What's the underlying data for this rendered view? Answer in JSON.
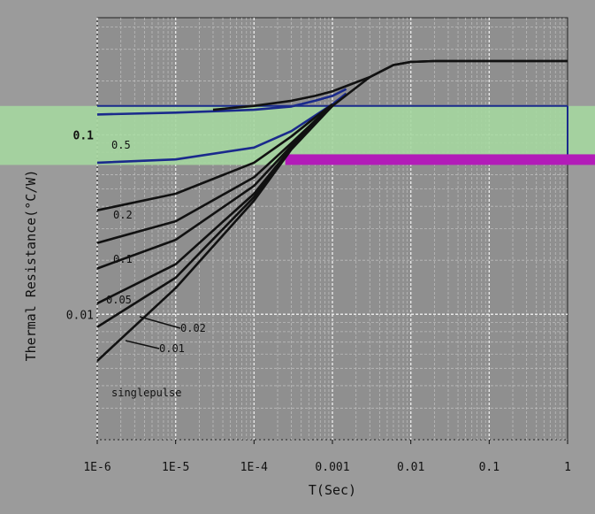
{
  "chart_data": {
    "type": "line",
    "title": "",
    "xlabel": "T(Sec)",
    "ylabel": "Thermal Resistance(°C/W)",
    "x_scale": "log",
    "y_scale": "log",
    "xlim": [
      1e-06,
      1
    ],
    "ylim": [
      0.002,
      0.45
    ],
    "grid": true,
    "x_ticks": [
      {
        "value": 1e-06,
        "label": "1E-6"
      },
      {
        "value": 1e-05,
        "label": "1E-5"
      },
      {
        "value": 0.0001,
        "label": "1E-4"
      },
      {
        "value": 0.001,
        "label": "0.001"
      },
      {
        "value": 0.01,
        "label": "0.01"
      },
      {
        "value": 0.1,
        "label": "0.1"
      },
      {
        "value": 1,
        "label": "1"
      }
    ],
    "y_ticks": [
      {
        "value": 0.1,
        "label": "0.1"
      },
      {
        "value": 0.01,
        "label": "0.01"
      }
    ],
    "highlight_band": {
      "y_range": [
        0.068,
        0.145
      ],
      "color": "#a5d7a0"
    },
    "marker_bar": {
      "text": "",
      "color": "#b21cb8"
    },
    "series": [
      {
        "name": "0.5",
        "color": "#1a2a8c",
        "x": [
          1e-06,
          1e-05,
          0.0001,
          0.0003,
          0.0006,
          0.001,
          0.0015
        ],
        "y": [
          0.13,
          0.133,
          0.138,
          0.144,
          0.155,
          0.165,
          0.18
        ]
      },
      {
        "name": "",
        "color": "#1a2a8c",
        "x": [
          1e-06,
          1e-05,
          0.0001,
          0.0003,
          0.0006,
          0.001,
          0.0015
        ],
        "y": [
          0.07,
          0.073,
          0.085,
          0.105,
          0.128,
          0.148,
          0.17
        ]
      },
      {
        "name": "0.2",
        "color": "#111111",
        "x": [
          1e-06,
          1e-05,
          0.0001,
          0.0003,
          0.0006,
          0.001
        ],
        "y": [
          0.038,
          0.047,
          0.07,
          0.098,
          0.125,
          0.148
        ]
      },
      {
        "name": "0.1",
        "color": "#111111",
        "x": [
          1e-06,
          1e-05,
          0.0001,
          0.0003,
          0.0006,
          0.001
        ],
        "y": [
          0.025,
          0.033,
          0.058,
          0.09,
          0.12,
          0.146
        ]
      },
      {
        "name": "0.05",
        "color": "#111111",
        "x": [
          1e-06,
          1e-05,
          0.0001,
          0.0003,
          0.0006,
          0.001
        ],
        "y": [
          0.018,
          0.026,
          0.052,
          0.087,
          0.118,
          0.145
        ]
      },
      {
        "name": "0.02",
        "color": "#111111",
        "x": [
          1e-06,
          1e-05,
          0.0001,
          0.0003,
          0.0006,
          0.001
        ],
        "y": [
          0.0115,
          0.019,
          0.047,
          0.085,
          0.117,
          0.145
        ]
      },
      {
        "name": "0.01",
        "color": "#111111",
        "x": [
          1e-06,
          1e-05,
          0.0001,
          0.0003,
          0.0006,
          0.001
        ],
        "y": [
          0.0085,
          0.016,
          0.045,
          0.084,
          0.116,
          0.145
        ]
      },
      {
        "name": "singlepulse",
        "color": "#111111",
        "x": [
          1e-06,
          1e-05,
          0.0001,
          0.0003,
          0.001,
          0.003,
          0.006,
          0.01,
          0.02,
          0.1,
          1
        ],
        "y": [
          0.0055,
          0.014,
          0.043,
          0.083,
          0.145,
          0.21,
          0.245,
          0.255,
          0.258,
          0.258,
          0.258
        ]
      },
      {
        "name": "",
        "color": "#111111",
        "x": [
          3e-05,
          0.0001,
          0.0003,
          0.0006,
          0.001,
          0.003,
          0.006,
          0.01,
          0.02,
          0.1,
          1
        ],
        "y": [
          0.138,
          0.145,
          0.155,
          0.165,
          0.175,
          0.21,
          0.245,
          0.255,
          0.258,
          0.258,
          0.258
        ]
      }
    ]
  }
}
